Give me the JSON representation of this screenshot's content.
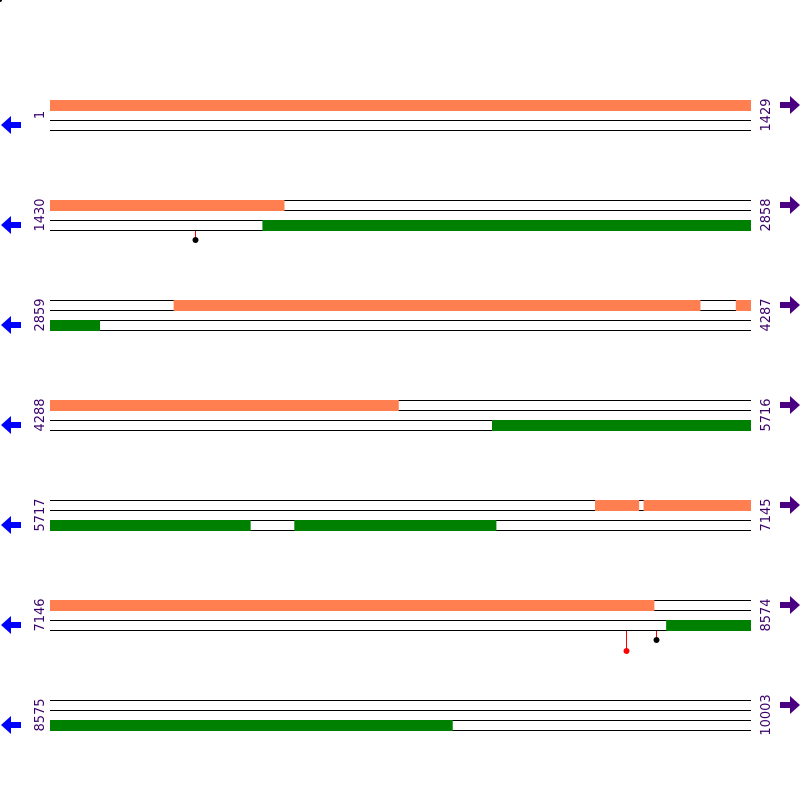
{
  "colors": {
    "forward_feature": "#ff7f50",
    "reverse_feature": "#008000",
    "arrow_forward": "#4b0082",
    "arrow_reverse": "#0000ff",
    "coord_text": "#3a006a",
    "marker_black": "#000000",
    "marker_red": "#ff0000"
  },
  "icons": {
    "forward": "right-arrow-icon",
    "reverse": "left-arrow-icon"
  },
  "rows": [
    {
      "start": 1,
      "end": 1429,
      "start_label": "1",
      "end_label": "1429",
      "forward": [
        [
          1,
          1429
        ]
      ],
      "reverse": [],
      "markers": []
    },
    {
      "start": 1430,
      "end": 2858,
      "start_label": "1430",
      "end_label": "2858",
      "forward": [
        [
          1430,
          1907
        ]
      ],
      "reverse": [
        [
          1863,
          2858
        ]
      ],
      "markers": [
        {
          "pos": 1725,
          "color": "black",
          "strand": "reverse",
          "depth": "short"
        }
      ]
    },
    {
      "start": 2859,
      "end": 4287,
      "start_label": "2859",
      "end_label": "4287",
      "forward": [
        [
          3111,
          4184
        ],
        [
          4257,
          4287
        ]
      ],
      "reverse": [
        [
          2859,
          2960
        ]
      ],
      "markers": []
    },
    {
      "start": 4288,
      "end": 5716,
      "start_label": "4288",
      "end_label": "5716",
      "forward": [
        [
          4288,
          4998
        ]
      ],
      "reverse": [
        [
          5189,
          5716
        ]
      ],
      "markers": []
    },
    {
      "start": 5717,
      "end": 7145,
      "start_label": "5717",
      "end_label": "7145",
      "forward": [
        [
          6828,
          6917
        ],
        [
          6927,
          7145
        ]
      ],
      "reverse": [
        [
          5717,
          6125
        ],
        [
          6215,
          6626
        ]
      ],
      "markers": []
    },
    {
      "start": 7146,
      "end": 8574,
      "start_label": "7146",
      "end_label": "8574",
      "forward": [
        [
          7146,
          8377
        ]
      ],
      "reverse": [
        [
          8402,
          8574
        ]
      ],
      "markers": [
        {
          "pos": 8320,
          "color": "red",
          "strand": "reverse",
          "depth": "long"
        },
        {
          "pos": 8382,
          "color": "black",
          "strand": "reverse",
          "depth": "short"
        }
      ]
    },
    {
      "start": 8575,
      "end": 10003,
      "start_label": "8575",
      "end_label": "10003",
      "forward": [],
      "reverse": [
        [
          8575,
          9395
        ]
      ],
      "markers": []
    }
  ]
}
